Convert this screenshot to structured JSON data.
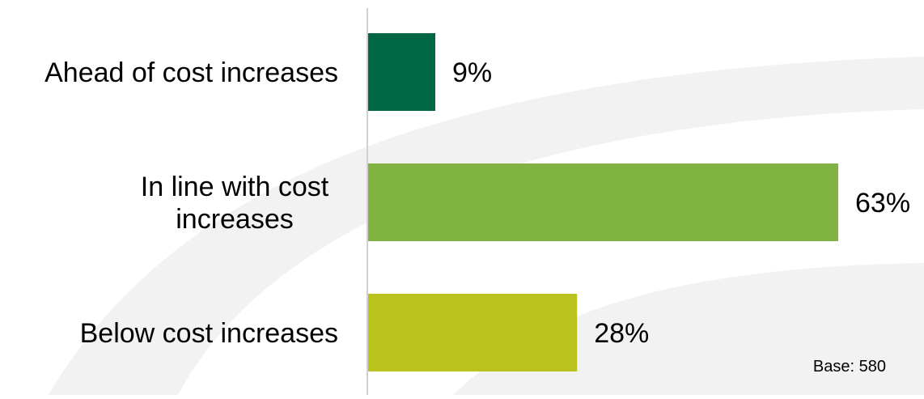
{
  "chart_data": {
    "type": "bar",
    "orientation": "horizontal",
    "categories": [
      [
        "Ahead of cost increases"
      ],
      [
        "In line with cost",
        "increases"
      ],
      [
        "Below cost increases"
      ]
    ],
    "values": [
      9,
      63,
      28
    ],
    "value_labels": [
      "9%",
      "63%",
      "28%"
    ],
    "colors": [
      "#006643",
      "#80b341",
      "#bac21e"
    ],
    "xlim": [
      0,
      68
    ],
    "grid": false,
    "legend": "none",
    "title": "",
    "xlabel": "",
    "ylabel": ""
  },
  "footnote": {
    "base_text": "Base: 580"
  },
  "background": {
    "watermark_color": "#f2f2f2",
    "axis_color": "#d0d0d0"
  }
}
